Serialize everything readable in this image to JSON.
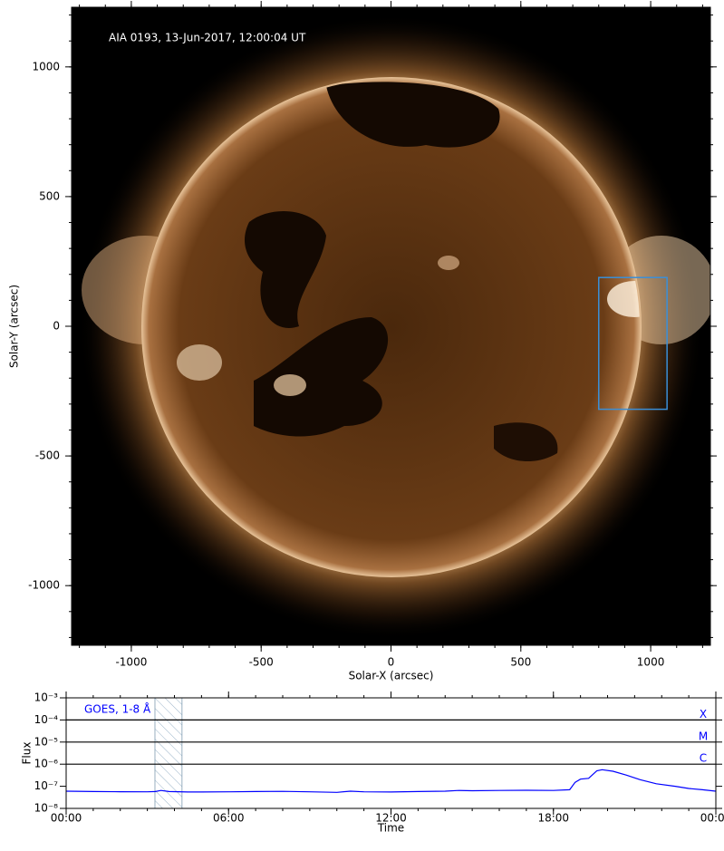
{
  "chart_data": [
    {
      "type": "image",
      "annotation": "AIA 0193, 13-Jun-2017, 12:00:04 UT",
      "xlabel": "Solar-X (arcsec)",
      "ylabel": "Solar-Y (arcsec)",
      "xlim": [
        -1230,
        1230
      ],
      "ylim": [
        -1230,
        1230
      ],
      "xticks": [
        -1000,
        -500,
        0,
        500,
        1000
      ],
      "yticks": [
        -1000,
        -500,
        0,
        500,
        1000
      ],
      "minor_tick_step": 100,
      "box": {
        "xlim": [
          800,
          1063
        ],
        "ylim": [
          -320,
          188
        ],
        "color": "#3a8fd8"
      }
    },
    {
      "type": "line",
      "xlabel": "Time",
      "ylabel": "Flux",
      "xlim": [
        0,
        24
      ],
      "xticks": [
        {
          "value": 0,
          "label": "00:00"
        },
        {
          "value": 6,
          "label": "06:00"
        },
        {
          "value": 12,
          "label": "12:00"
        },
        {
          "value": 18,
          "label": "18:00"
        },
        {
          "value": 24,
          "label": "00:00"
        }
      ],
      "minor_tick_step": 1,
      "ylim": [
        1e-08,
        0.001
      ],
      "log_y": true,
      "yticks": [
        {
          "value": 1e-08,
          "label": "10⁻⁸"
        },
        {
          "value": 1e-07,
          "label": "10⁻⁷"
        },
        {
          "value": 1e-06,
          "label": "10⁻⁶"
        },
        {
          "value": 1e-05,
          "label": "10⁻⁵"
        },
        {
          "value": 0.0001,
          "label": "10⁻⁴"
        },
        {
          "value": 0.001,
          "label": "10⁻³"
        }
      ],
      "flare_classes": [
        {
          "label": "X",
          "value": 0.0001
        },
        {
          "label": "M",
          "value": 1e-05
        },
        {
          "label": "C",
          "value": 1e-06
        }
      ],
      "highlight": [
        3.28,
        4.28
      ],
      "x": [
        0,
        1,
        2,
        3,
        3.3,
        3.5,
        3.8,
        4.5,
        5,
        6,
        7,
        8,
        9,
        10,
        10.5,
        11,
        12,
        13,
        14,
        14.5,
        15,
        16,
        17,
        18,
        18.6,
        18.8,
        19.0,
        19.3,
        19.6,
        19.8,
        20.2,
        20.7,
        21.2,
        21.8,
        22.5,
        23,
        23.5,
        24
      ],
      "series": [
        {
          "name": "GOES, 1-8 Å",
          "color": "#0000ff",
          "values": [
            6e-08,
            5.8e-08,
            5.7e-08,
            5.6e-08,
            5.8e-08,
            6.5e-08,
            5.8e-08,
            5.5e-08,
            5.5e-08,
            5.6e-08,
            5.8e-08,
            5.9e-08,
            5.6e-08,
            5.3e-08,
            6e-08,
            5.6e-08,
            5.5e-08,
            5.8e-08,
            6e-08,
            6.5e-08,
            6.3e-08,
            6.5e-08,
            6.6e-08,
            6.5e-08,
            7e-08,
            1.5e-07,
            2.1e-07,
            2.3e-07,
            5e-07,
            5.6e-07,
            4.8e-07,
            3.2e-07,
            2e-07,
            1.3e-07,
            1e-07,
            8e-08,
            7e-08,
            6e-08
          ]
        }
      ]
    }
  ]
}
